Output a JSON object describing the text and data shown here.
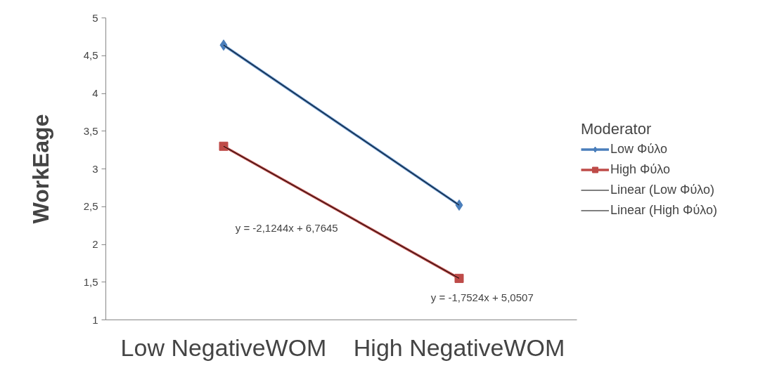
{
  "chart_data": {
    "type": "line",
    "ylabel": "WorkEage",
    "legend_title": "Moderator",
    "categories": [
      "Low NegativeWOM",
      "High NegativeWOM"
    ],
    "series": [
      {
        "name": "Low Φύλο",
        "color": "#4a7ebb",
        "values": [
          4.64,
          2.52
        ],
        "marker": "diamond"
      },
      {
        "name": "High Φύλο",
        "color": "#be4b48",
        "values": [
          3.3,
          1.55
        ],
        "marker": "square"
      },
      {
        "name": "Linear (Low Φύλο)",
        "color": "#000000",
        "values": [
          4.64,
          2.52
        ],
        "marker": "none"
      },
      {
        "name": "Linear (High Φύλο)",
        "color": "#000000",
        "values": [
          3.3,
          1.55
        ],
        "marker": "none"
      }
    ],
    "ylim": [
      1,
      5
    ],
    "yticks": [
      1,
      {
        "value": 1.5,
        "label": "1,5"
      },
      2,
      {
        "value": 2.5,
        "label": "2,5"
      },
      3,
      {
        "value": 3.5,
        "label": "3,5"
      },
      4,
      {
        "value": 4.5,
        "label": "4,5"
      },
      5
    ],
    "annotations": [
      "y = -2,1244x + 6,7645",
      "y = -1,7524x + 5,0507"
    ],
    "grid": false,
    "legend": "right"
  }
}
